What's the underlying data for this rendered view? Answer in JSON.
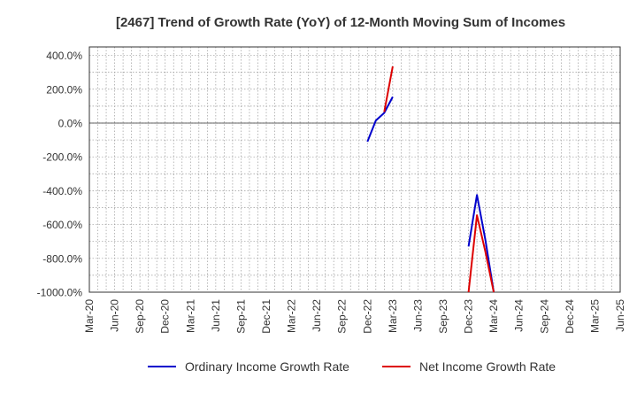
{
  "chart_data": {
    "type": "line",
    "title": "[2467]  Trend of Growth Rate (YoY) of 12-Month Moving Sum of Incomes",
    "xlabel": "",
    "ylabel": "",
    "ylim": [
      -1000,
      450
    ],
    "yticks": [
      400,
      200,
      0,
      -200,
      -400,
      -600,
      -800,
      -1000
    ],
    "ytick_labels": [
      "400.0%",
      "200.0%",
      "0.0%",
      "-200.0%",
      "-400.0%",
      "-600.0%",
      "-800.0%",
      "-1000.0%"
    ],
    "x_categories": [
      "Mar-20",
      "Jun-20",
      "Sep-20",
      "Dec-20",
      "Mar-21",
      "Jun-21",
      "Sep-21",
      "Dec-21",
      "Mar-22",
      "Jun-22",
      "Sep-22",
      "Dec-22",
      "Mar-23",
      "Jun-23",
      "Sep-23",
      "Dec-23",
      "Mar-24",
      "Jun-24",
      "Sep-24",
      "Dec-24",
      "Mar-25",
      "Jun-25"
    ],
    "grid": true,
    "legend_position": "bottom",
    "series": [
      {
        "name": "Ordinary Income Growth Rate",
        "color": "#0000cc",
        "points": [
          {
            "x": "Dec-22",
            "y": -110
          },
          {
            "x": "Jan-23",
            "y": 15
          },
          {
            "x": "Feb-23",
            "y": 60
          },
          {
            "x": "Mar-23",
            "y": 155
          },
          {
            "x": "Dec-23",
            "y": -730
          },
          {
            "x": "Jan-24",
            "y": -425
          },
          {
            "x": "Feb-24",
            "y": -690
          },
          {
            "x": "Mar-24",
            "y": -1000
          }
        ],
        "segments": [
          [
            0,
            3
          ],
          [
            4,
            7
          ]
        ]
      },
      {
        "name": "Net Income Growth Rate",
        "color": "#dd0000",
        "points": [
          {
            "x": "Feb-23",
            "y": 65
          },
          {
            "x": "Mar-23",
            "y": 335
          },
          {
            "x": "Dec-23",
            "y": -1000
          },
          {
            "x": "Jan-24",
            "y": -545
          },
          {
            "x": "Feb-24",
            "y": -760
          },
          {
            "x": "Mar-24",
            "y": -1000
          }
        ],
        "segments": [
          [
            0,
            1
          ],
          [
            2,
            5
          ]
        ]
      }
    ]
  }
}
